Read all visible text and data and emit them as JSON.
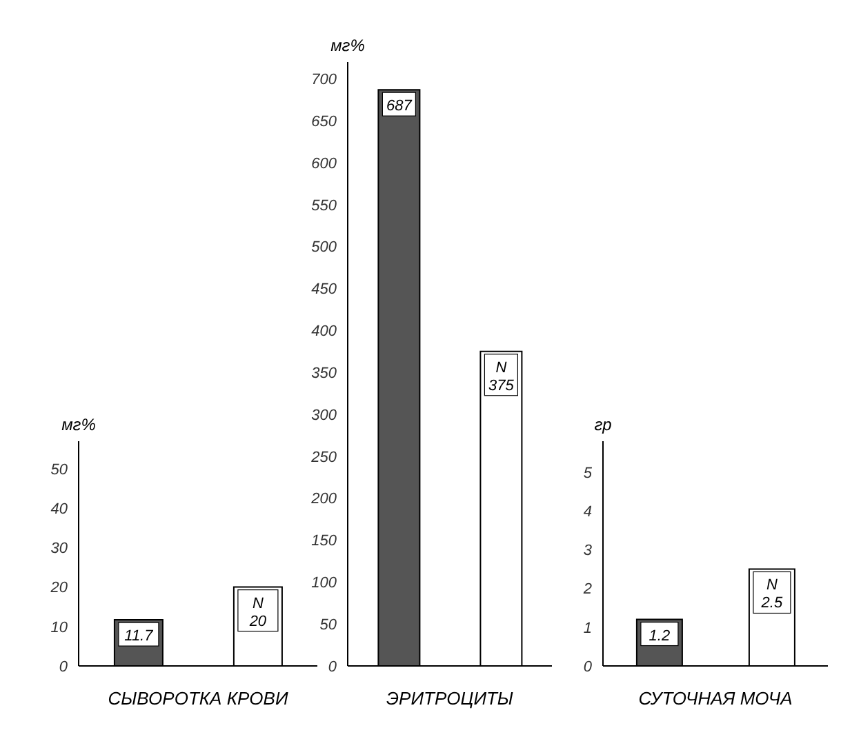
{
  "chart_data": [
    {
      "type": "bar",
      "xlabel": "СЫВОРОТКА КРОВИ",
      "ylabel": "мг%",
      "categories": [
        null,
        null
      ],
      "values": [
        11.7,
        20
      ],
      "colors": [
        "#555555",
        "#ffffff"
      ],
      "value_labels": [
        "11.7",
        "N 20"
      ],
      "ylim": [
        0,
        57
      ],
      "yticks": [
        0,
        10,
        20,
        30,
        40,
        50
      ],
      "tick_labels": "y",
      "grid": false,
      "legend": false
    },
    {
      "type": "bar",
      "xlabel": "ЭРИТРОЦИТЫ",
      "ylabel": "мг%",
      "categories": [
        null,
        null
      ],
      "values": [
        687,
        375
      ],
      "colors": [
        "#555555",
        "#ffffff"
      ],
      "value_labels": [
        "687",
        "N 375"
      ],
      "ylim": [
        0,
        720
      ],
      "yticks": [
        0,
        50,
        100,
        150,
        200,
        250,
        300,
        350,
        400,
        450,
        500,
        550,
        600,
        650,
        700
      ],
      "tick_labels": "y",
      "grid": false,
      "legend": false
    },
    {
      "type": "bar",
      "xlabel": "СУТОЧНАЯ МОЧА",
      "ylabel": "гр",
      "categories": [
        null,
        null
      ],
      "values": [
        1.2,
        2.5
      ],
      "colors": [
        "#555555",
        "#ffffff"
      ],
      "value_labels": [
        "1.2",
        "N 2.5"
      ],
      "ylim": [
        0,
        5.8
      ],
      "yticks": [
        0,
        1,
        2,
        3,
        4,
        5
      ],
      "tick_labels": "y",
      "grid": false,
      "legend": false
    }
  ]
}
